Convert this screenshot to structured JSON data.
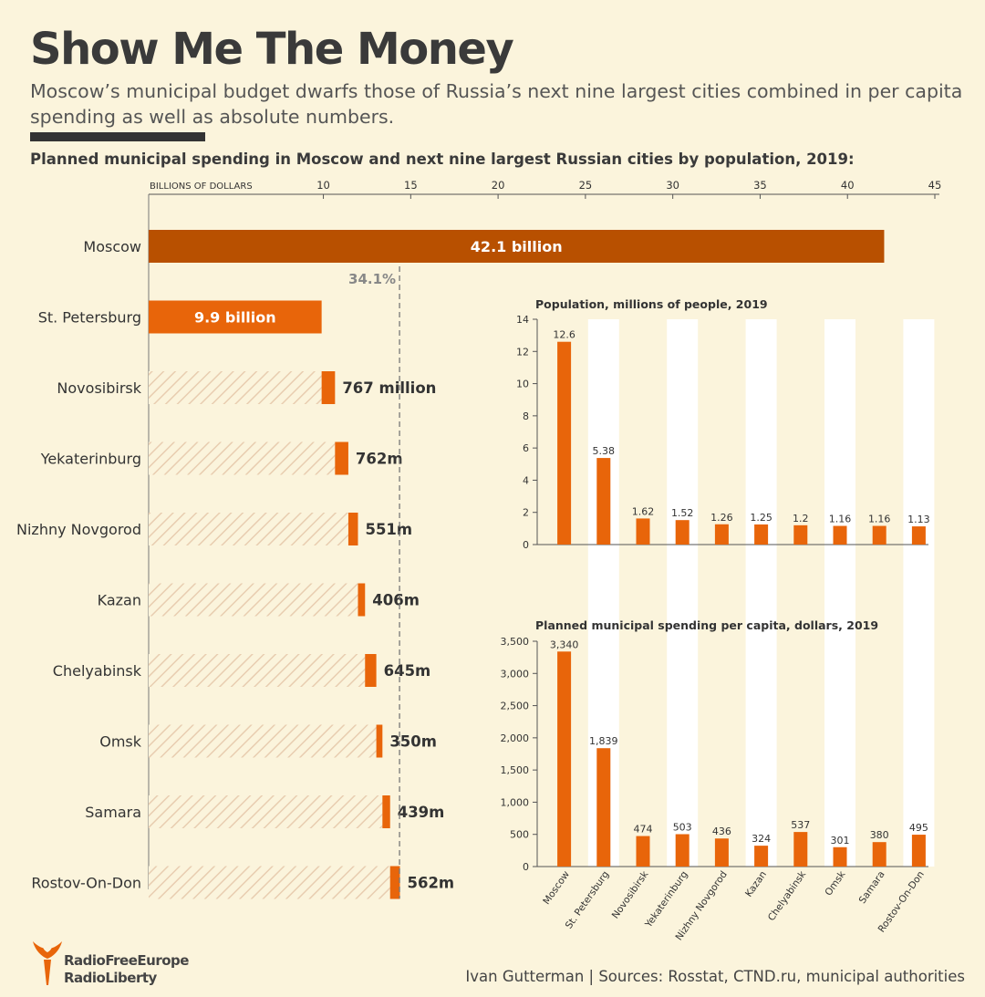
{
  "header": {
    "title": "Show Me The Money",
    "subtitle": "Moscow’s municipal budget dwarfs those of Russia’s next nine largest cities combined in per capita spending as well as absolute numbers.",
    "chart_heading": "Planned municipal spending in Moscow and next nine largest Russian cities by population, 2019:"
  },
  "colors": {
    "moscow": "#b85000",
    "orange": "#e8650a",
    "hatch": "#e8cdb0",
    "column": "#ffffff",
    "background": "#fbf4dc"
  },
  "chart_data": [
    {
      "type": "bar",
      "orientation": "horizontal",
      "axis_unit_label": "BILLIONS OF DOLLARS",
      "ticks": [
        10,
        15,
        20,
        25,
        30,
        35,
        40,
        45
      ],
      "xlim": [
        0,
        45
      ],
      "categories": [
        "Moscow",
        "St. Petersburg",
        "Novosibirsk",
        "Yekaterinburg",
        "Nizhny Novgorod",
        "Kazan",
        "Chelyabinsk",
        "Omsk",
        "Samara",
        "Rostov-On-Don"
      ],
      "values": [
        42.1,
        9.9,
        0.767,
        0.762,
        0.551,
        0.406,
        0.645,
        0.35,
        0.439,
        0.562
      ],
      "value_labels": [
        "42.1 billion",
        "9.9 billion",
        "767 million",
        "762m",
        "551m",
        "406m",
        "645m",
        "350m",
        "439m",
        "562m"
      ],
      "stacked_cumulative": true,
      "reference_line": {
        "value": 14.36,
        "label": "34.1%"
      }
    },
    {
      "type": "bar",
      "title": "Population, millions of people, 2019",
      "categories": [
        "Moscow",
        "St. Petersburg",
        "Novosibirsk",
        "Yekaterinburg",
        "Nizhny Novgorod",
        "Kazan",
        "Chelyabinsk",
        "Omsk",
        "Samara",
        "Rostov-On-Don"
      ],
      "values": [
        12.6,
        5.38,
        1.62,
        1.52,
        1.26,
        1.25,
        1.2,
        1.16,
        1.16,
        1.13
      ],
      "value_labels": [
        "12.6",
        "5.38",
        "1.62",
        "1.52",
        "1.26",
        "1.25",
        "1.2",
        "1.16",
        "1.16",
        "1.13"
      ],
      "ylim": [
        0,
        14
      ],
      "yticks": [
        0,
        2,
        4,
        6,
        8,
        10,
        12,
        14
      ],
      "ytick_labels": [
        "0",
        "2",
        "4",
        "6",
        "8",
        "10",
        "12",
        "14"
      ]
    },
    {
      "type": "bar",
      "title": "Planned municipal spending per capita, dollars, 2019",
      "categories": [
        "Moscow",
        "St. Petersburg",
        "Novosibirsk",
        "Yekaterinburg",
        "Nizhny Novgorod",
        "Kazan",
        "Chelyabinsk",
        "Omsk",
        "Samara",
        "Rostov-On-Don"
      ],
      "values": [
        3340,
        1839,
        474,
        503,
        436,
        324,
        537,
        301,
        380,
        495
      ],
      "value_labels": [
        "3,340",
        "1,839",
        "474",
        "503",
        "436",
        "324",
        "537",
        "301",
        "380",
        "495"
      ],
      "ylim": [
        0,
        3500
      ],
      "yticks": [
        0,
        500,
        1000,
        1500,
        2000,
        2500,
        3000,
        3500
      ],
      "ytick_labels": [
        "0",
        "500",
        "1,000",
        "1,500",
        "2,000",
        "2,500",
        "3,000",
        "3,500"
      ]
    }
  ],
  "footer": {
    "logo_line1": "RadioFreeEurope",
    "logo_line2": "RadioLiberty",
    "credit": "Ivan Gutterman | Sources: Rosstat, CTND.ru, municipal authorities"
  }
}
